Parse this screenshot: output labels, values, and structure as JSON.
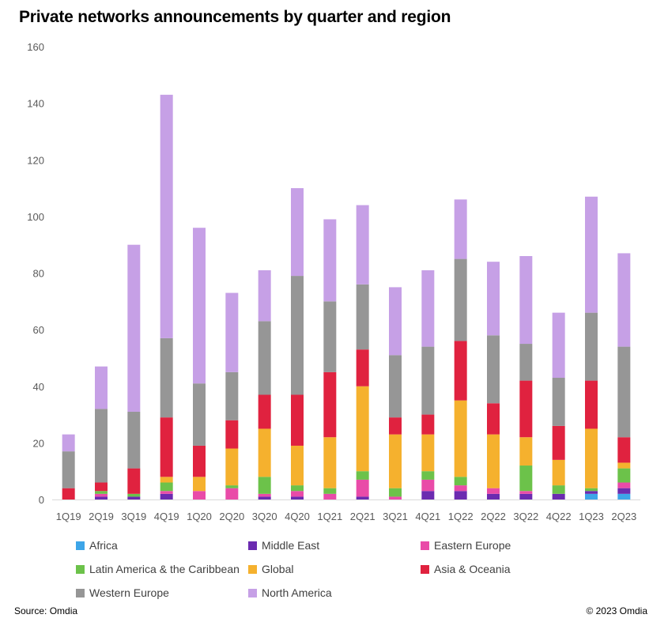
{
  "chart_data": {
    "type": "stacked-bar",
    "title": "Private networks announcements by quarter and region",
    "categories": [
      "1Q19",
      "2Q19",
      "3Q19",
      "4Q19",
      "1Q20",
      "2Q20",
      "3Q20",
      "4Q20",
      "1Q21",
      "2Q21",
      "3Q21",
      "4Q21",
      "1Q22",
      "2Q22",
      "3Q22",
      "4Q22",
      "1Q23",
      "2Q23"
    ],
    "ylim": [
      0,
      160
    ],
    "yticks": [
      0,
      20,
      40,
      60,
      80,
      100,
      120,
      140,
      160
    ],
    "xlabel": "",
    "ylabel": "",
    "grid": false,
    "legend_position": "bottom",
    "series": [
      {
        "name": "Africa",
        "color": "#3DA5E8",
        "values": [
          0,
          0,
          0,
          0,
          0,
          0,
          0,
          0,
          0,
          0,
          0,
          0,
          0,
          0,
          0,
          0,
          2,
          2
        ]
      },
      {
        "name": "Middle East",
        "color": "#6B2BB0",
        "values": [
          0,
          1,
          1,
          2,
          0,
          0,
          1,
          1,
          0,
          1,
          0,
          3,
          3,
          2,
          2,
          2,
          1,
          2
        ]
      },
      {
        "name": "Eastern Europe",
        "color": "#E94BA8",
        "values": [
          0,
          1,
          0,
          1,
          3,
          4,
          1,
          2,
          2,
          6,
          1,
          4,
          2,
          2,
          1,
          0,
          0,
          2
        ]
      },
      {
        "name": "Latin America & the Caribbean",
        "color": "#6CC24A",
        "values": [
          0,
          1,
          1,
          3,
          0,
          1,
          6,
          2,
          2,
          3,
          3,
          3,
          3,
          0,
          9,
          3,
          1,
          5
        ]
      },
      {
        "name": "Global",
        "color": "#F5B12E",
        "values": [
          0,
          0,
          0,
          2,
          5,
          13,
          17,
          14,
          18,
          30,
          19,
          13,
          27,
          19,
          10,
          9,
          21,
          2
        ]
      },
      {
        "name": "Asia & Oceania",
        "color": "#E0223F",
        "values": [
          4,
          3,
          9,
          21,
          11,
          10,
          12,
          18,
          23,
          13,
          6,
          7,
          21,
          11,
          20,
          12,
          17,
          9
        ]
      },
      {
        "name": "Western Europe",
        "color": "#969696",
        "values": [
          13,
          26,
          20,
          28,
          22,
          17,
          26,
          42,
          25,
          23,
          22,
          24,
          29,
          24,
          13,
          17,
          24,
          32
        ]
      },
      {
        "name": "North America",
        "color": "#C6A0E6",
        "values": [
          6,
          15,
          59,
          86,
          55,
          28,
          18,
          31,
          29,
          28,
          24,
          27,
          21,
          26,
          31,
          23,
          41,
          33
        ]
      }
    ]
  },
  "footer": {
    "source": "Source: Omdia",
    "copyright": "© 2023 Omdia"
  }
}
